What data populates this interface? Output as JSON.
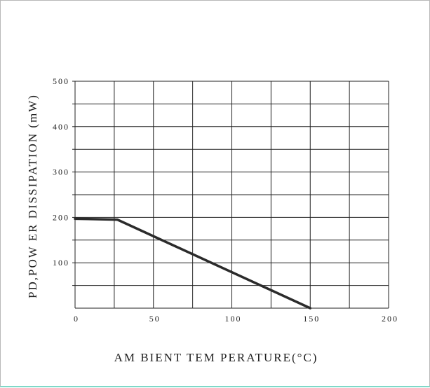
{
  "chart_data": {
    "type": "line",
    "xlabel": "AM BIENT TEM PERATURE(°C)",
    "ylabel": "PD,POW ER DISSIPATION (mW)",
    "xlim": [
      0,
      200
    ],
    "ylim": [
      0,
      500
    ],
    "x_ticks": [
      "0",
      "50",
      "100",
      "150",
      "200"
    ],
    "y_ticks": [
      "100",
      "200",
      "300",
      "400",
      "500"
    ],
    "grid": true,
    "series": [
      {
        "x": [
          0,
          27,
          150
        ],
        "y": [
          197,
          195,
          0
        ]
      }
    ]
  }
}
